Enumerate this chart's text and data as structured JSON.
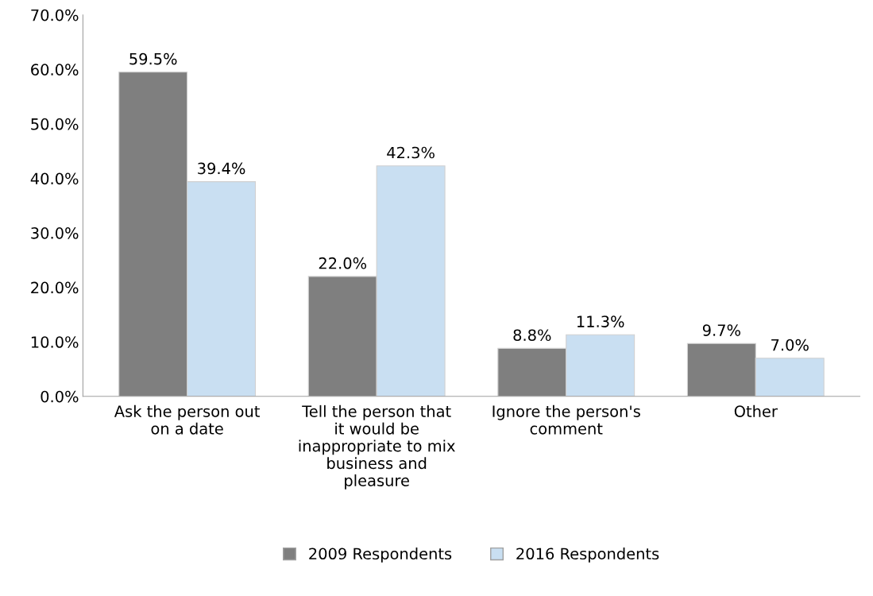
{
  "chart_data": {
    "type": "bar",
    "categories": [
      "Ask the person out\non a date",
      "Tell the person that\nit would be\ninappropriate to mix\nbusiness and\npleasure",
      "Ignore the person's\ncomment",
      "Other"
    ],
    "series": [
      {
        "name": "2009 Respondents",
        "color": "#7f7f7f",
        "values": [
          59.5,
          22.0,
          8.8,
          9.7
        ],
        "value_labels": [
          "59.5%",
          "22.0%",
          "8.8%",
          "9.7%"
        ]
      },
      {
        "name": "2016 Respondents",
        "color": "#c9dff2",
        "values": [
          39.4,
          42.3,
          11.3,
          7.0
        ],
        "value_labels": [
          "39.4%",
          "42.3%",
          "11.3%",
          "7.0%"
        ]
      }
    ],
    "ylim": [
      0,
      70
    ],
    "yticks": [
      {
        "value": 0,
        "label": "0.0%"
      },
      {
        "value": 10,
        "label": "10.0%"
      },
      {
        "value": 20,
        "label": "20.0%"
      },
      {
        "value": 30,
        "label": "30.0%"
      },
      {
        "value": 40,
        "label": "40.0%"
      },
      {
        "value": 50,
        "label": "50.0%"
      },
      {
        "value": 60,
        "label": "60.0%"
      },
      {
        "value": 70,
        "label": "70.0%"
      }
    ],
    "grid": false,
    "legend": "bottom"
  }
}
